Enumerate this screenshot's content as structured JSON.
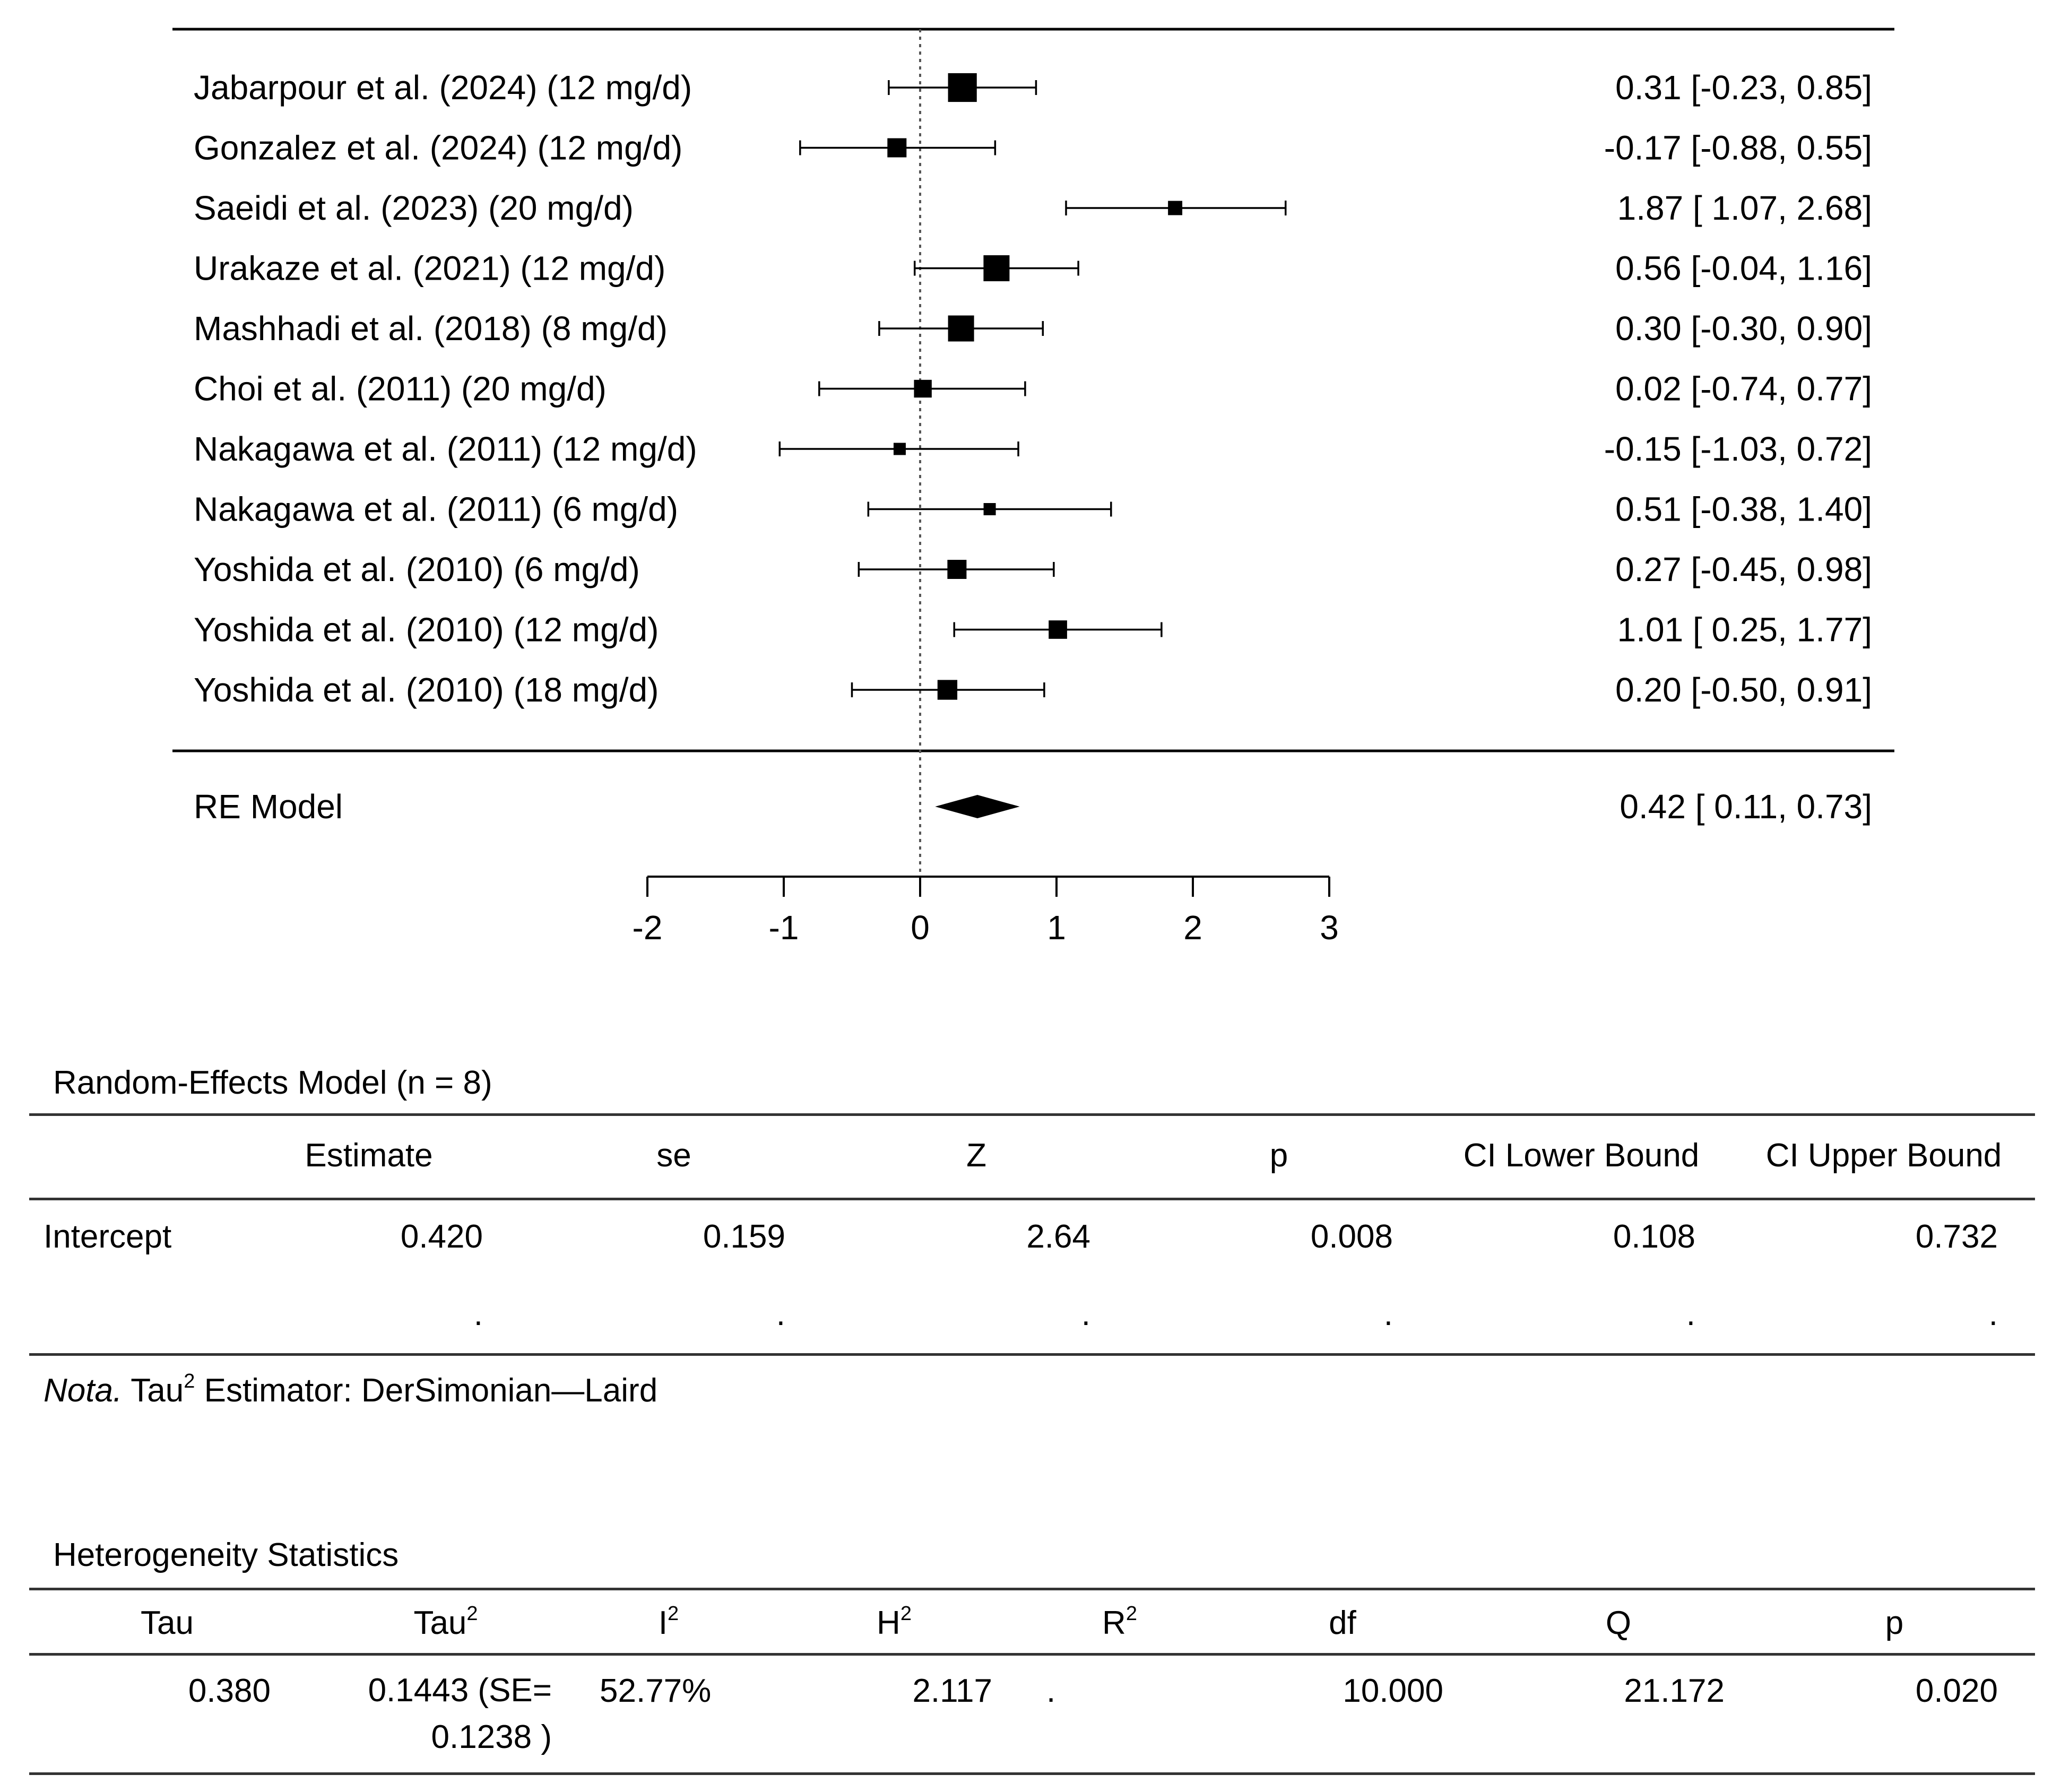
{
  "chart_data": {
    "type": "forest",
    "xlim": [
      -2,
      3
    ],
    "x_ticks": [
      "-2",
      "-1",
      "0",
      "1",
      "2",
      "3"
    ],
    "reference_line": 0,
    "studies": [
      {
        "label": "Jabarpour et al. (2024) (12 mg/d)",
        "estimate": 0.31,
        "lower": -0.23,
        "upper": 0.85,
        "weight": 3.4,
        "ci_text": "0.31 [-0.23, 0.85]"
      },
      {
        "label": "Gonzalez et al. (2024) (12 mg/d)",
        "estimate": -0.17,
        "lower": -0.88,
        "upper": 0.55,
        "weight": 2.0,
        "ci_text": "-0.17 [-0.88, 0.55]"
      },
      {
        "label": "Saeidi et al. (2023) (20 mg/d)",
        "estimate": 1.87,
        "lower": 1.07,
        "upper": 2.68,
        "weight": 1.3,
        "ci_text": "1.87 [ 1.07, 2.68]"
      },
      {
        "label": "Urakaze et al. (2021) (12 mg/d)",
        "estimate": 0.56,
        "lower": -0.04,
        "upper": 1.16,
        "weight": 3.0,
        "ci_text": "0.56 [-0.04, 1.16]"
      },
      {
        "label": "Mashhadi et al. (2018) (8 mg/d)",
        "estimate": 0.3,
        "lower": -0.3,
        "upper": 0.9,
        "weight": 3.0,
        "ci_text": "0.30 [-0.30, 0.90]"
      },
      {
        "label": "Choi et al. (2011) (20 mg/d)",
        "estimate": 0.02,
        "lower": -0.74,
        "upper": 0.77,
        "weight": 1.8,
        "ci_text": "0.02 [-0.74, 0.77]"
      },
      {
        "label": "Nakagawa et al. (2011) (12 mg/d)",
        "estimate": -0.15,
        "lower": -1.03,
        "upper": 0.72,
        "weight": 1.0,
        "ci_text": "-0.15 [-1.03, 0.72]"
      },
      {
        "label": "Nakagawa et al. (2011) (6 mg/d)",
        "estimate": 0.51,
        "lower": -0.38,
        "upper": 1.4,
        "weight": 1.0,
        "ci_text": "0.51 [-0.38, 1.40]"
      },
      {
        "label": "Yoshida et al. (2010) (6 mg/d)",
        "estimate": 0.27,
        "lower": -0.45,
        "upper": 0.98,
        "weight": 2.0,
        "ci_text": "0.27 [-0.45, 0.98]"
      },
      {
        "label": "Yoshida et al. (2010) (12 mg/d)",
        "estimate": 1.01,
        "lower": 0.25,
        "upper": 1.77,
        "weight": 1.9,
        "ci_text": "1.01 [ 0.25, 1.77]"
      },
      {
        "label": "Yoshida et al. (2010) (18 mg/d)",
        "estimate": 0.2,
        "lower": -0.5,
        "upper": 0.91,
        "weight": 2.1,
        "ci_text": "0.20 [-0.50, 0.91]"
      }
    ],
    "summary": {
      "label": "RE Model",
      "estimate": 0.42,
      "lower": 0.11,
      "upper": 0.73,
      "ci_text": "0.42 [ 0.11, 0.73]"
    }
  },
  "re_table": {
    "title": "Random-Effects Model (n = 8)",
    "headers": [
      "Estimate",
      "se",
      "Z",
      "p",
      "CI Lower Bound",
      "CI Upper Bound"
    ],
    "row": {
      "label": "Intercept",
      "values": [
        "0.420",
        "0.159",
        "2.64",
        "0.008",
        "0.108",
        "0.732"
      ]
    },
    "dot_row": [
      ".",
      ".",
      ".",
      ".",
      ".",
      "."
    ],
    "note_prefix": "Nota.",
    "note_tau": " Tau",
    "note_sup": "2",
    "note_rest": " Estimator: DerSimonian—Laird"
  },
  "het_table": {
    "title": "Heterogeneity Statistics",
    "headers": {
      "tau": "Tau",
      "tau2": "Tau",
      "tau2_sup": "2",
      "i2": "I",
      "i2_sup": "2",
      "h2": "H",
      "h2_sup": "2",
      "r2": "R",
      "r2_sup": "2",
      "df": "df",
      "q": "Q",
      "p": "p"
    },
    "values": {
      "tau": "0.380",
      "tau2_line1": "0.1443 (SE=",
      "tau2_line2": "0.1238 )",
      "i2": "52.77%",
      "h2": "2.117",
      "r2": ".",
      "df": "10.000",
      "q": "21.172",
      "p": "0.020"
    }
  }
}
